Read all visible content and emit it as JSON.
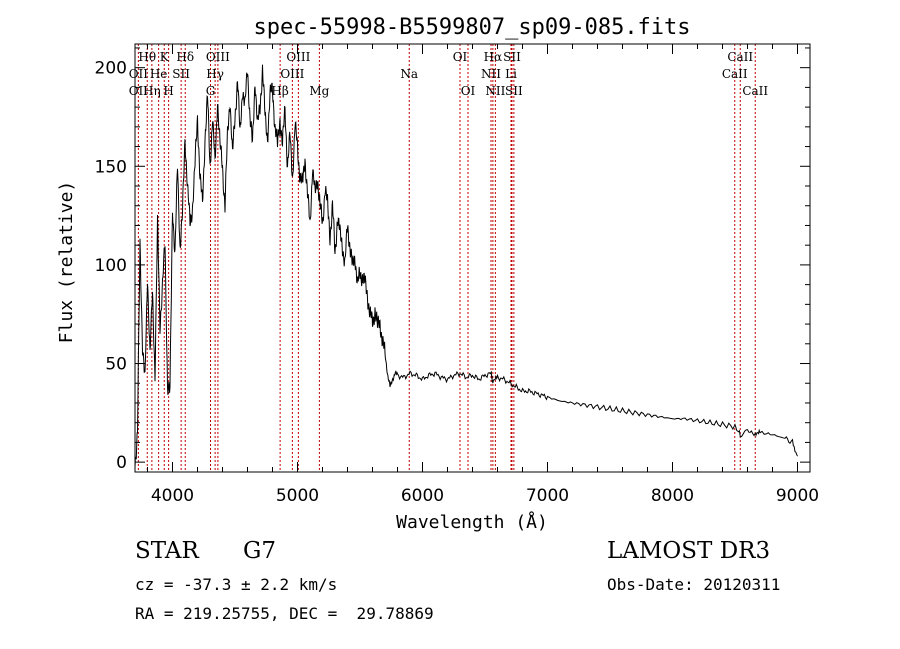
{
  "chart_data": {
    "type": "line",
    "title": "spec-55998-B5599807_sp09-085.fits",
    "xlabel": "Wavelength (Å)",
    "ylabel": "Flux (relative)",
    "xlim": [
      3700,
      9100
    ],
    "ylim": [
      -5,
      212
    ],
    "x_ticks": [
      4000,
      5000,
      6000,
      7000,
      8000,
      9000
    ],
    "y_ticks": [
      0,
      50,
      100,
      150,
      200
    ],
    "series": [
      {
        "name": "spectrum",
        "x": [
          3700,
          3720,
          3740,
          3760,
          3780,
          3800,
          3820,
          3840,
          3860,
          3880,
          3900,
          3920,
          3940,
          3960,
          3980,
          4000,
          4020,
          4040,
          4060,
          4080,
          4100,
          4120,
          4140,
          4160,
          4180,
          4200,
          4220,
          4240,
          4260,
          4280,
          4300,
          4320,
          4340,
          4360,
          4380,
          4400,
          4420,
          4440,
          4460,
          4480,
          4500,
          4520,
          4540,
          4560,
          4580,
          4600,
          4620,
          4640,
          4660,
          4680,
          4700,
          4720,
          4740,
          4760,
          4780,
          4800,
          4820,
          4840,
          4860,
          4880,
          4900,
          4920,
          4940,
          4960,
          4980,
          5000,
          5020,
          5040,
          5060,
          5080,
          5100,
          5120,
          5140,
          5160,
          5180,
          5200,
          5220,
          5240,
          5260,
          5280,
          5300,
          5320,
          5340,
          5360,
          5380,
          5400,
          5420,
          5440,
          5460,
          5480,
          5500,
          5520,
          5540,
          5560,
          5580,
          5600,
          5620,
          5640,
          5660,
          5680,
          5700,
          5720,
          5740,
          5760,
          5780,
          5800,
          5850,
          5900,
          5950,
          6000,
          6050,
          6100,
          6150,
          6200,
          6250,
          6300,
          6350,
          6400,
          6450,
          6500,
          6550,
          6562,
          6600,
          6650,
          6700,
          6750,
          6800,
          6850,
          6900,
          6950,
          7000,
          7100,
          7200,
          7300,
          7400,
          7500,
          7600,
          7700,
          7800,
          7900,
          8000,
          8100,
          8200,
          8300,
          8400,
          8500,
          8542,
          8600,
          8662,
          8700,
          8800,
          8900,
          8960,
          9000
        ],
        "y": [
          0,
          15,
          110,
          60,
          40,
          95,
          55,
          85,
          45,
          120,
          70,
          90,
          110,
          40,
          35,
          130,
          105,
          150,
          110,
          125,
          165,
          140,
          120,
          130,
          150,
          175,
          145,
          130,
          165,
          185,
          150,
          175,
          150,
          185,
          160,
          150,
          130,
          165,
          185,
          155,
          175,
          195,
          165,
          190,
          180,
          200,
          175,
          160,
          195,
          170,
          180,
          200,
          175,
          165,
          185,
          190,
          170,
          160,
          175,
          160,
          180,
          150,
          165,
          145,
          170,
          160,
          145,
          140,
          155,
          135,
          120,
          150,
          135,
          145,
          130,
          120,
          140,
          130,
          115,
          130,
          105,
          125,
          115,
          110,
          100,
          120,
          110,
          98,
          105,
          90,
          95,
          95,
          90,
          85,
          75,
          70,
          78,
          68,
          72,
          60,
          55,
          45,
          38,
          42,
          45,
          44,
          43,
          45,
          44,
          42,
          44,
          45,
          43,
          42,
          44,
          45,
          43,
          44,
          42,
          44,
          45,
          40,
          43,
          42,
          40,
          38,
          36,
          36,
          35,
          34,
          33,
          31,
          30,
          29,
          28,
          27,
          26,
          25,
          24,
          23,
          22,
          22,
          21,
          20,
          19,
          18,
          14,
          16,
          14,
          15,
          14,
          12,
          10,
          3
        ]
      }
    ],
    "lines": [
      {
        "label": "Hθ",
        "x": 3798,
        "row": 0
      },
      {
        "label": "OII",
        "x": 3727,
        "row": 1
      },
      {
        "label": "OII",
        "x": 3727,
        "row": 2
      },
      {
        "label": "Hη",
        "x": 3835,
        "row": 2
      },
      {
        "label": "He",
        "x": 3889,
        "row": 1
      },
      {
        "label": "K",
        "x": 3934,
        "row": 0
      },
      {
        "label": "SII",
        "x": 4069,
        "row": 1
      },
      {
        "label": "H",
        "x": 3969,
        "row": 2
      },
      {
        "label": "Hδ",
        "x": 4102,
        "row": 0
      },
      {
        "label": "OIII",
        "x": 4363,
        "row": 0
      },
      {
        "label": "Hγ",
        "x": 4341,
        "row": 1
      },
      {
        "label": "G",
        "x": 4304,
        "row": 2
      },
      {
        "label": "Hβ",
        "x": 4861,
        "row": 2
      },
      {
        "label": "OIII",
        "x": 5007,
        "row": 0
      },
      {
        "label": "OIII",
        "x": 4959,
        "row": 1
      },
      {
        "label": "Mg",
        "x": 5175,
        "row": 2
      },
      {
        "label": "Na",
        "x": 5894,
        "row": 1
      },
      {
        "label": "OI",
        "x": 6300,
        "row": 0
      },
      {
        "label": "OI",
        "x": 6364,
        "row": 2
      },
      {
        "label": "Hα",
        "x": 6563,
        "row": 0
      },
      {
        "label": "SII",
        "x": 6716,
        "row": 0
      },
      {
        "label": "NII",
        "x": 6548,
        "row": 1
      },
      {
        "label": "Li",
        "x": 6708,
        "row": 1
      },
      {
        "label": "NII",
        "x": 6583,
        "row": 2
      },
      {
        "label": "SII",
        "x": 6731,
        "row": 2
      },
      {
        "label": "CaII",
        "x": 8542,
        "row": 0
      },
      {
        "label": "CaII",
        "x": 8498,
        "row": 1
      },
      {
        "label": "CaII",
        "x": 8662,
        "row": 2
      }
    ]
  },
  "info": {
    "object_class": "STAR",
    "subclass": "G7",
    "survey": "LAMOST DR3",
    "cz": "cz = -37.3 ± 2.2 km/s",
    "obs_date": "Obs-Date: 20120311",
    "coords": "RA = 219.25755, DEC =  29.78869"
  },
  "colors": {
    "spectrum": "#000000",
    "line_marker": "#c00000",
    "axis": "#000000"
  }
}
